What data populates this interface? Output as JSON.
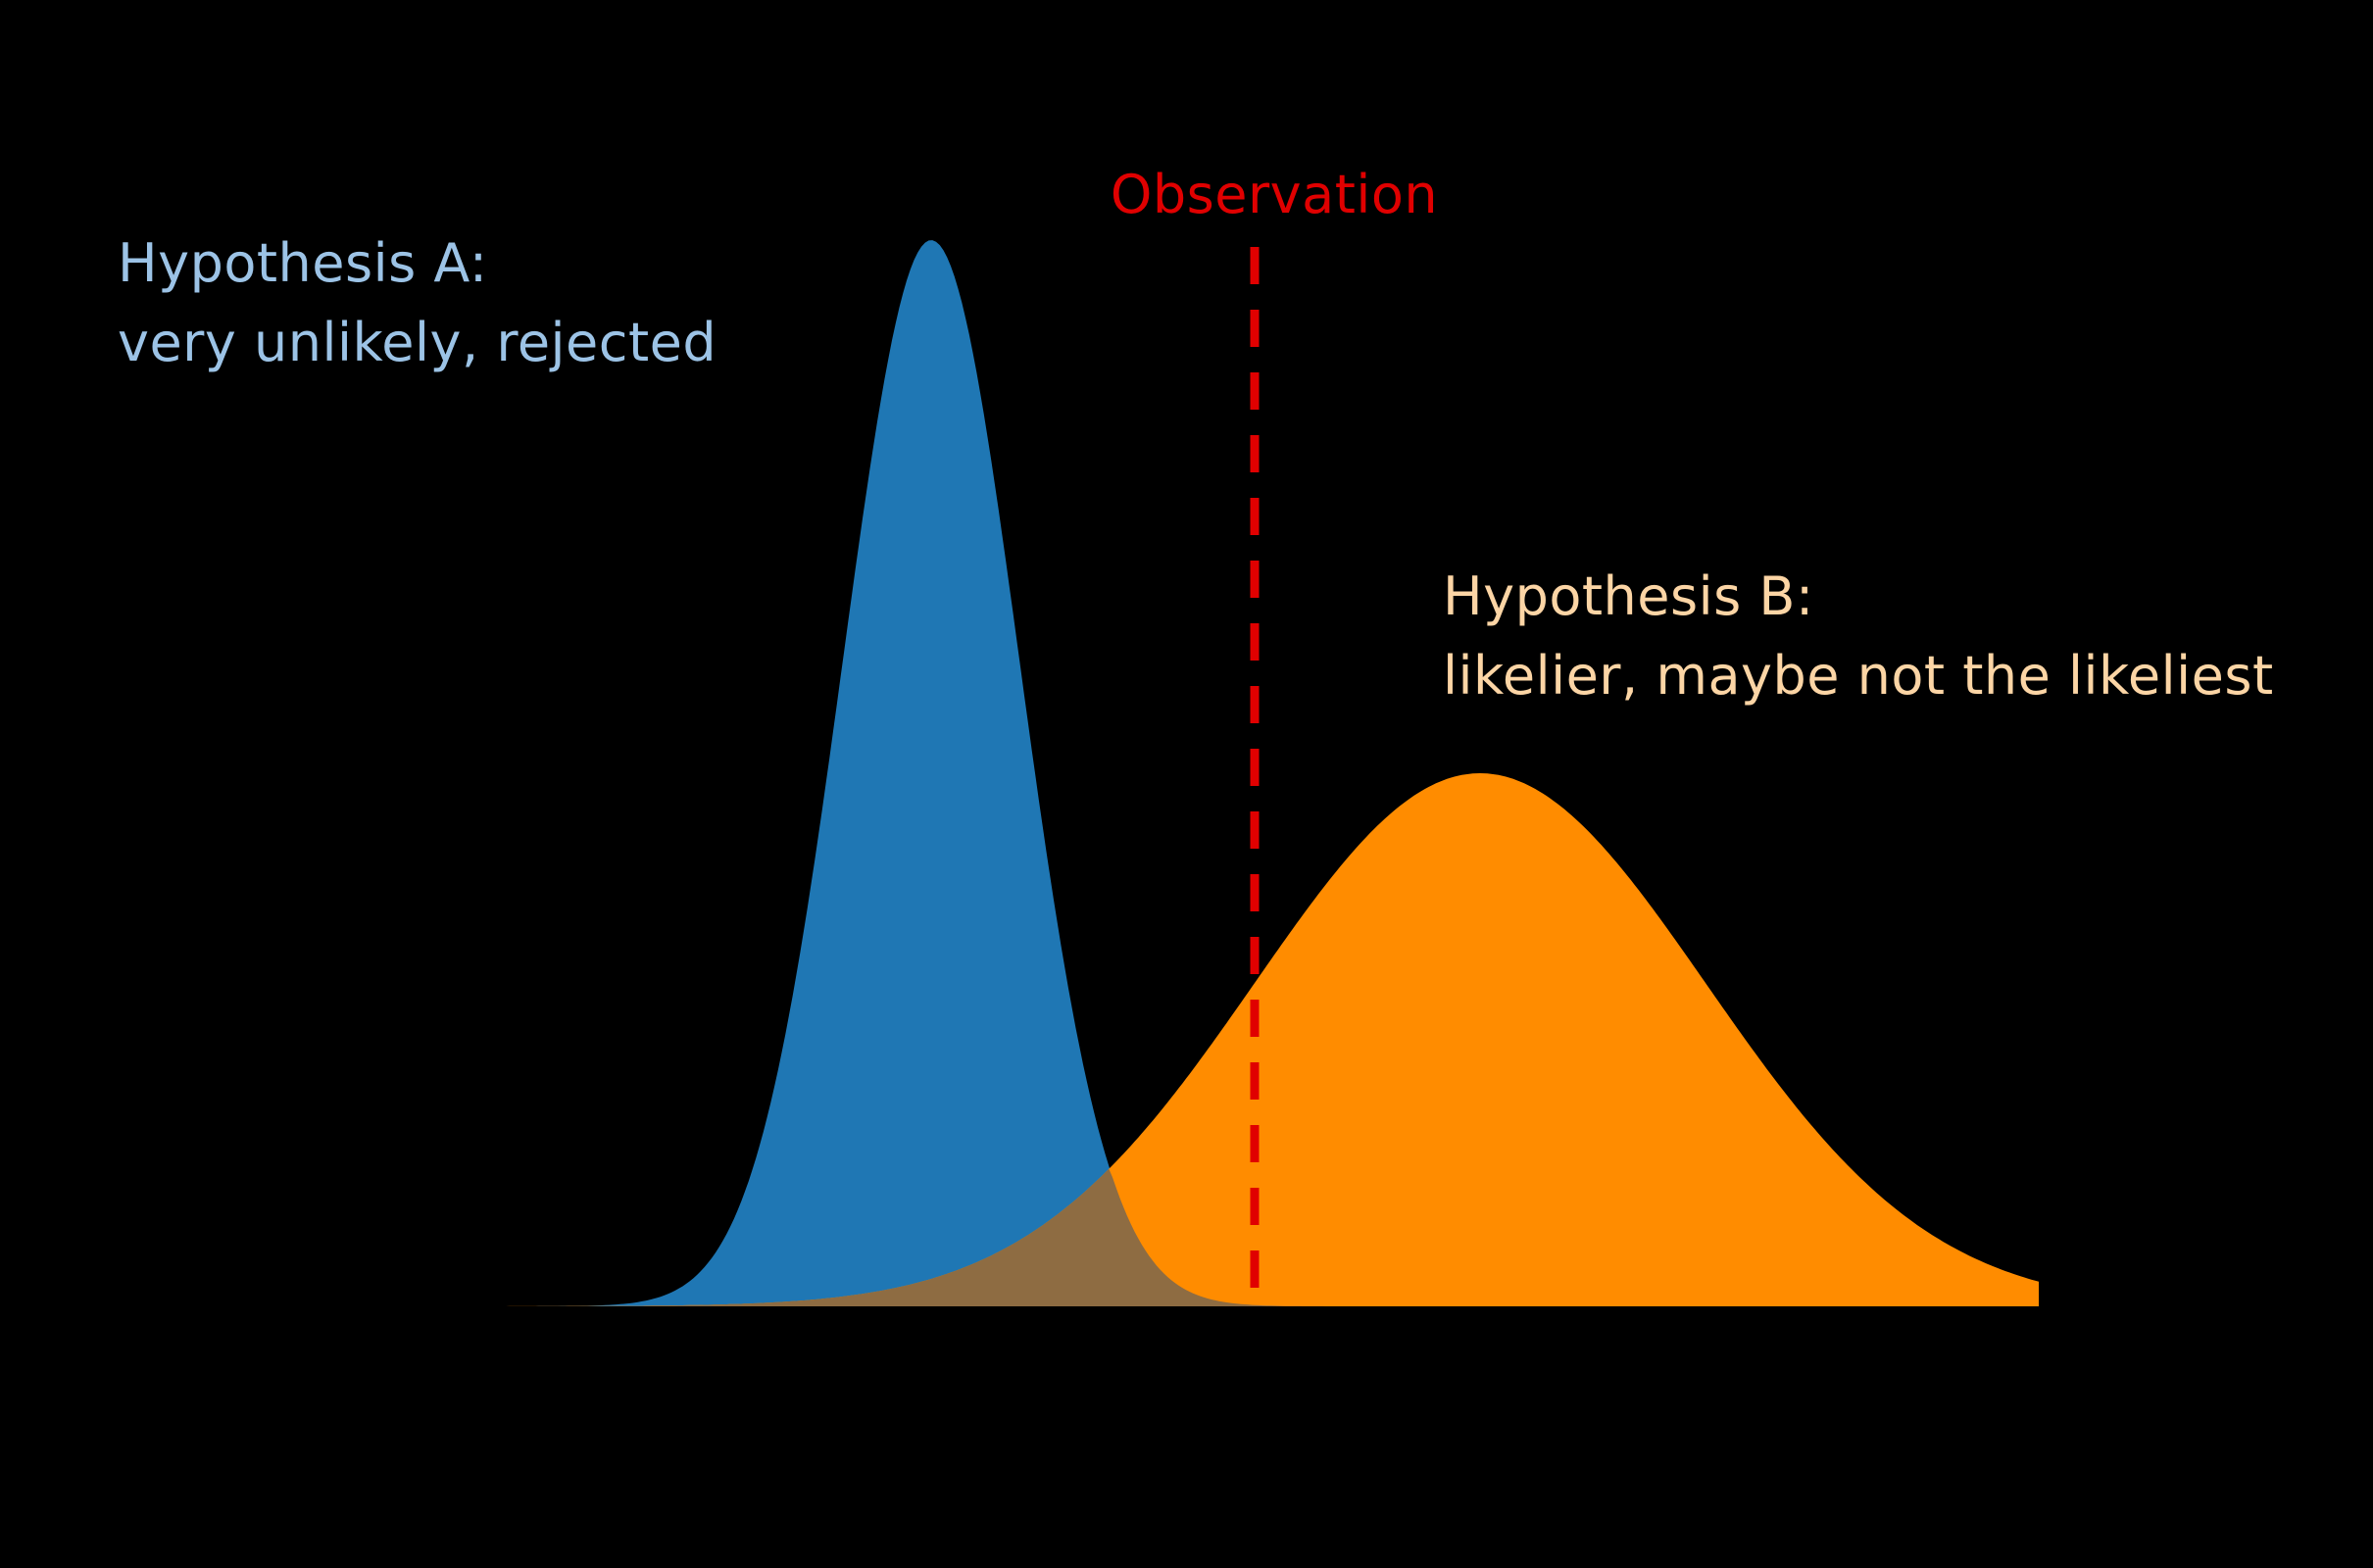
{
  "chart_data": {
    "type": "area",
    "title": "",
    "background": "#000000",
    "axes_visible": false,
    "grid": false,
    "x_range": [
      0,
      9
    ],
    "y_range": [
      0,
      1
    ],
    "series": [
      {
        "name": "Hypothesis A",
        "label_line1": "Hypothesis A:",
        "label_line2": "very unlikely, rejected",
        "label_color": "#9cc3e6",
        "fill_color": "#1f77b4",
        "distribution": "normal",
        "mean": 3.35,
        "sd": 0.45,
        "peak": 1.0
      },
      {
        "name": "Hypothesis B",
        "label_line1": "Hypothesis B:",
        "label_line2": "likelier, maybe not the likeliest",
        "label_color": "#fcd5a5",
        "fill_color": "#ff8c00",
        "distribution": "normal",
        "mean": 6.15,
        "sd": 1.15,
        "peak": 0.5
      }
    ],
    "overlap_color": "#8e6c42",
    "observation": {
      "label": "Observation",
      "x": 5.0,
      "line_color": "#e00000",
      "label_color": "#e00000",
      "line_style": "dashed"
    }
  }
}
